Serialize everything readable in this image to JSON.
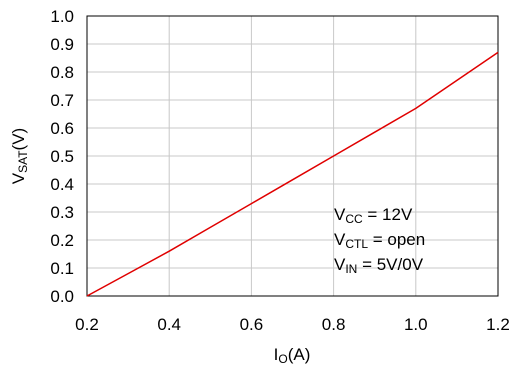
{
  "chart_data": {
    "type": "line",
    "title": "",
    "xlabel": {
      "main": "I",
      "sub": "O",
      "unit": "(A)"
    },
    "ylabel": {
      "main": "V",
      "sub": "SAT",
      "unit": "(V)"
    },
    "xlim": [
      0.2,
      1.2
    ],
    "ylim": [
      0.0,
      1.0
    ],
    "xticks": [
      0.2,
      0.4,
      0.6,
      0.8,
      1.0,
      1.2
    ],
    "xtick_labels": [
      "0.2",
      "0.4",
      "0.6",
      "0.8",
      "1.0",
      "1.2"
    ],
    "yticks": [
      0.0,
      0.1,
      0.2,
      0.3,
      0.4,
      0.5,
      0.6,
      0.7,
      0.8,
      0.9,
      1.0
    ],
    "ytick_labels": [
      "0.0",
      "0.1",
      "0.2",
      "0.3",
      "0.4",
      "0.5",
      "0.6",
      "0.7",
      "0.8",
      "0.9",
      "1.0"
    ],
    "grid": true,
    "legend": "none",
    "series": [
      {
        "color": "#e00000",
        "x": [
          0.2,
          0.3,
          0.4,
          0.5,
          0.6,
          0.7,
          0.8,
          0.9,
          1.0,
          1.1,
          1.2
        ],
        "y": [
          0.0,
          0.08,
          0.16,
          0.245,
          0.33,
          0.415,
          0.5,
          0.585,
          0.67,
          0.77,
          0.87
        ]
      }
    ],
    "annotations": [
      {
        "main": "V",
        "sub": "CC",
        "rest": " = 12V"
      },
      {
        "main": "V",
        "sub": "CTL",
        "rest": " = open"
      },
      {
        "main": "V",
        "sub": "IN",
        "rest": " = 5V/0V"
      }
    ]
  }
}
